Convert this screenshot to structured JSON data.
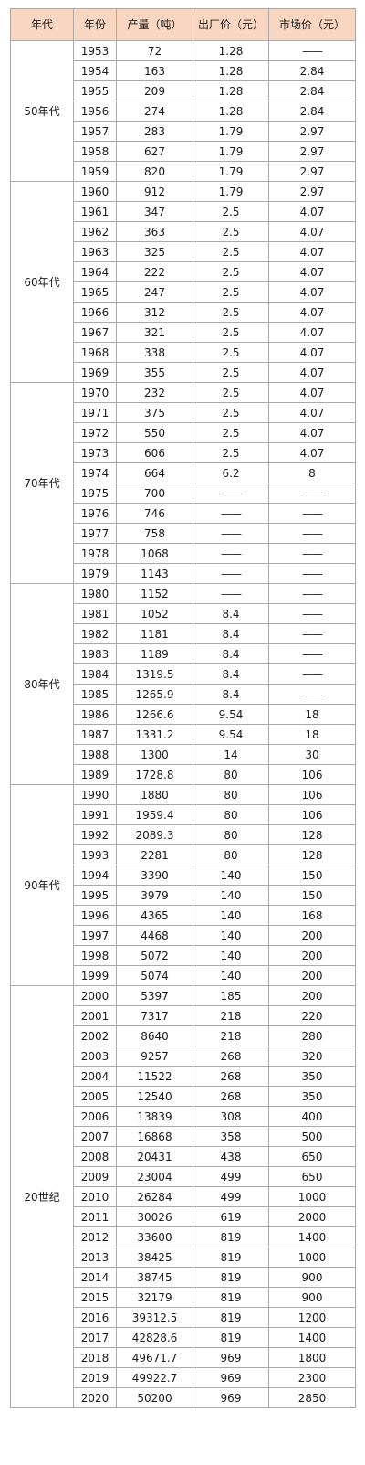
{
  "header": {
    "decade": "年代",
    "year": "年份",
    "output": "产量（吨）",
    "factory_price": "出厂价（元）",
    "market_price": "市场价（元）"
  },
  "decades": [
    {
      "label": "50年代",
      "rows": [
        {
          "year": "1953",
          "output": "72",
          "factory": "1.28",
          "market": "——"
        },
        {
          "year": "1954",
          "output": "163",
          "factory": "1.28",
          "market": "2.84"
        },
        {
          "year": "1955",
          "output": "209",
          "factory": "1.28",
          "market": "2.84"
        },
        {
          "year": "1956",
          "output": "274",
          "factory": "1.28",
          "market": "2.84"
        },
        {
          "year": "1957",
          "output": "283",
          "factory": "1.79",
          "market": "2.97"
        },
        {
          "year": "1958",
          "output": "627",
          "factory": "1.79",
          "market": "2.97"
        },
        {
          "year": "1959",
          "output": "820",
          "factory": "1.79",
          "market": "2.97"
        }
      ]
    },
    {
      "label": "60年代",
      "rows": [
        {
          "year": "1960",
          "output": "912",
          "factory": "1.79",
          "market": "2.97"
        },
        {
          "year": "1961",
          "output": "347",
          "factory": "2.5",
          "market": "4.07"
        },
        {
          "year": "1962",
          "output": "363",
          "factory": "2.5",
          "market": "4.07"
        },
        {
          "year": "1963",
          "output": "325",
          "factory": "2.5",
          "market": "4.07"
        },
        {
          "year": "1964",
          "output": "222",
          "factory": "2.5",
          "market": "4.07"
        },
        {
          "year": "1965",
          "output": "247",
          "factory": "2.5",
          "market": "4.07"
        },
        {
          "year": "1966",
          "output": "312",
          "factory": "2.5",
          "market": "4.07"
        },
        {
          "year": "1967",
          "output": "321",
          "factory": "2.5",
          "market": "4.07"
        },
        {
          "year": "1968",
          "output": "338",
          "factory": "2.5",
          "market": "4.07"
        },
        {
          "year": "1969",
          "output": "355",
          "factory": "2.5",
          "market": "4.07"
        }
      ]
    },
    {
      "label": "70年代",
      "rows": [
        {
          "year": "1970",
          "output": "232",
          "factory": "2.5",
          "market": "4.07"
        },
        {
          "year": "1971",
          "output": "375",
          "factory": "2.5",
          "market": "4.07"
        },
        {
          "year": "1972",
          "output": "550",
          "factory": "2.5",
          "market": "4.07"
        },
        {
          "year": "1973",
          "output": "606",
          "factory": "2.5",
          "market": "4.07"
        },
        {
          "year": "1974",
          "output": "664",
          "factory": "6.2",
          "market": "8"
        },
        {
          "year": "1975",
          "output": "700",
          "factory": "——",
          "market": "——"
        },
        {
          "year": "1976",
          "output": "746",
          "factory": "——",
          "market": "——"
        },
        {
          "year": "1977",
          "output": "758",
          "factory": "——",
          "market": "——"
        },
        {
          "year": "1978",
          "output": "1068",
          "factory": "——",
          "market": "——"
        },
        {
          "year": "1979",
          "output": "1143",
          "factory": "——",
          "market": "——"
        }
      ]
    },
    {
      "label": "80年代",
      "rows": [
        {
          "year": "1980",
          "output": "1152",
          "factory": "——",
          "market": "——"
        },
        {
          "year": "1981",
          "output": "1052",
          "factory": "8.4",
          "market": "——"
        },
        {
          "year": "1982",
          "output": "1181",
          "factory": "8.4",
          "market": "——"
        },
        {
          "year": "1983",
          "output": "1189",
          "factory": "8.4",
          "market": "——"
        },
        {
          "year": "1984",
          "output": "1319.5",
          "factory": "8.4",
          "market": "——"
        },
        {
          "year": "1985",
          "output": "1265.9",
          "factory": "8.4",
          "market": "——"
        },
        {
          "year": "1986",
          "output": "1266.6",
          "factory": "9.54",
          "market": "18"
        },
        {
          "year": "1987",
          "output": "1331.2",
          "factory": "9.54",
          "market": "18"
        },
        {
          "year": "1988",
          "output": "1300",
          "factory": "14",
          "market": "30"
        },
        {
          "year": "1989",
          "output": "1728.8",
          "factory": "80",
          "market": "106"
        }
      ]
    },
    {
      "label": "90年代",
      "rows": [
        {
          "year": "1990",
          "output": "1880",
          "factory": "80",
          "market": "106"
        },
        {
          "year": "1991",
          "output": "1959.4",
          "factory": "80",
          "market": "106"
        },
        {
          "year": "1992",
          "output": "2089.3",
          "factory": "80",
          "market": "128"
        },
        {
          "year": "1993",
          "output": "2281",
          "factory": "80",
          "market": "128"
        },
        {
          "year": "1994",
          "output": "3390",
          "factory": "140",
          "market": "150"
        },
        {
          "year": "1995",
          "output": "3979",
          "factory": "140",
          "market": "150"
        },
        {
          "year": "1996",
          "output": "4365",
          "factory": "140",
          "market": "168"
        },
        {
          "year": "1997",
          "output": "4468",
          "factory": "140",
          "market": "200"
        },
        {
          "year": "1998",
          "output": "5072",
          "factory": "140",
          "market": "200"
        },
        {
          "year": "1999",
          "output": "5074",
          "factory": "140",
          "market": "200"
        }
      ]
    },
    {
      "label": "20世纪",
      "rows": [
        {
          "year": "2000",
          "output": "5397",
          "factory": "185",
          "market": "200"
        },
        {
          "year": "2001",
          "output": "7317",
          "factory": "218",
          "market": "220"
        },
        {
          "year": "2002",
          "output": "8640",
          "factory": "218",
          "market": "280"
        },
        {
          "year": "2003",
          "output": "9257",
          "factory": "268",
          "market": "320"
        },
        {
          "year": "2004",
          "output": "11522",
          "factory": "268",
          "market": "350"
        },
        {
          "year": "2005",
          "output": "12540",
          "factory": "268",
          "market": "350"
        },
        {
          "year": "2006",
          "output": "13839",
          "factory": "308",
          "market": "400"
        },
        {
          "year": "2007",
          "output": "16868",
          "factory": "358",
          "market": "500"
        },
        {
          "year": "2008",
          "output": "20431",
          "factory": "438",
          "market": "650"
        },
        {
          "year": "2009",
          "output": "23004",
          "factory": "499",
          "market": "650"
        },
        {
          "year": "2010",
          "output": "26284",
          "factory": "499",
          "market": "1000"
        },
        {
          "year": "2011",
          "output": "30026",
          "factory": "619",
          "market": "2000"
        },
        {
          "year": "2012",
          "output": "33600",
          "factory": "819",
          "market": "1400"
        },
        {
          "year": "2013",
          "output": "38425",
          "factory": "819",
          "market": "1000"
        },
        {
          "year": "2014",
          "output": "38745",
          "factory": "819",
          "market": "900"
        },
        {
          "year": "2015",
          "output": "32179",
          "factory": "819",
          "market": "900"
        },
        {
          "year": "2016",
          "output": "39312.5",
          "factory": "819",
          "market": "1200"
        },
        {
          "year": "2017",
          "output": "42828.6",
          "factory": "819",
          "market": "1400"
        },
        {
          "year": "2018",
          "output": "49671.7",
          "factory": "969",
          "market": "1800"
        },
        {
          "year": "2019",
          "output": "49922.7",
          "factory": "969",
          "market": "2300"
        },
        {
          "year": "2020",
          "output": "50200",
          "factory": "969",
          "market": "2850"
        }
      ]
    }
  ]
}
